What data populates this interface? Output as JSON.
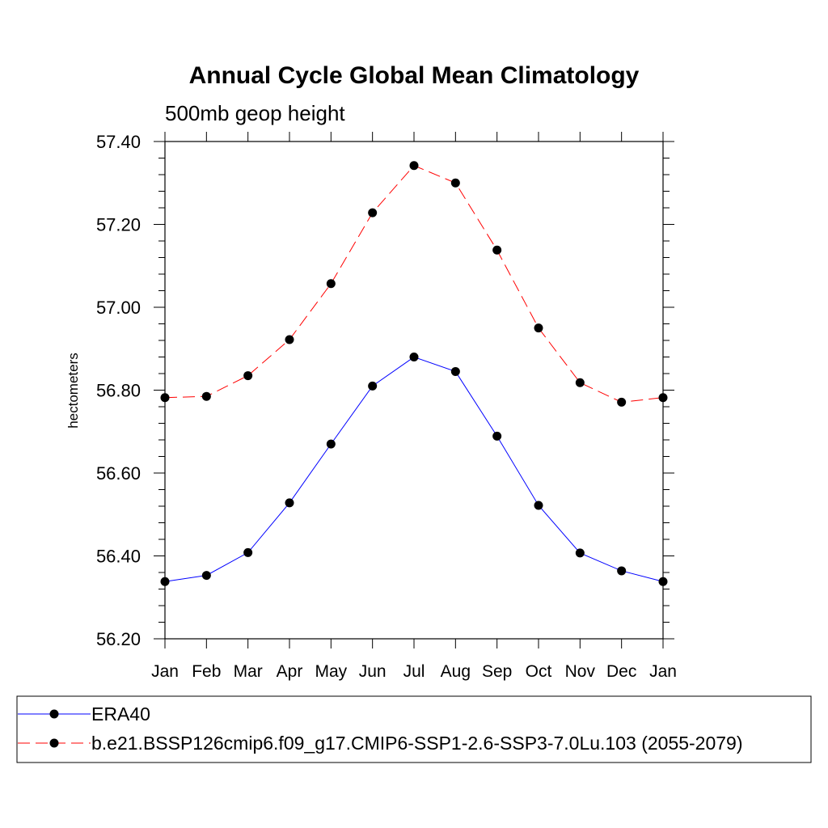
{
  "chart_data": {
    "type": "line",
    "title": "Annual Cycle Global Mean Climatology",
    "subtitle": "500mb geop height",
    "ylabel": "hectometers",
    "xlabel": "",
    "categories": [
      "Jan",
      "Feb",
      "Mar",
      "Apr",
      "May",
      "Jun",
      "Jul",
      "Aug",
      "Sep",
      "Oct",
      "Nov",
      "Dec",
      "Jan"
    ],
    "ylim": [
      56.2,
      57.4
    ],
    "yticks": [
      "56.20",
      "56.40",
      "56.60",
      "56.80",
      "57.00",
      "57.20",
      "57.40"
    ],
    "grid": false,
    "legend_position": "bottom",
    "series": [
      {
        "name": "ERA40",
        "color": "#0000ff",
        "line_style": "solid",
        "values": [
          56.338,
          56.353,
          56.408,
          56.528,
          56.67,
          56.81,
          56.88,
          56.845,
          56.689,
          56.522,
          56.407,
          56.364,
          56.338
        ]
      },
      {
        "name": "b.e21.BSSP126cmip6.f09_g17.CMIP6-SSP1-2.6-SSP3-7.0Lu.103 (2055-2079)",
        "color": "#ff0000",
        "line_style": "dashed",
        "values": [
          56.782,
          56.785,
          56.835,
          56.922,
          57.057,
          57.228,
          57.342,
          57.3,
          57.138,
          56.95,
          56.818,
          56.771,
          56.782
        ]
      }
    ]
  }
}
